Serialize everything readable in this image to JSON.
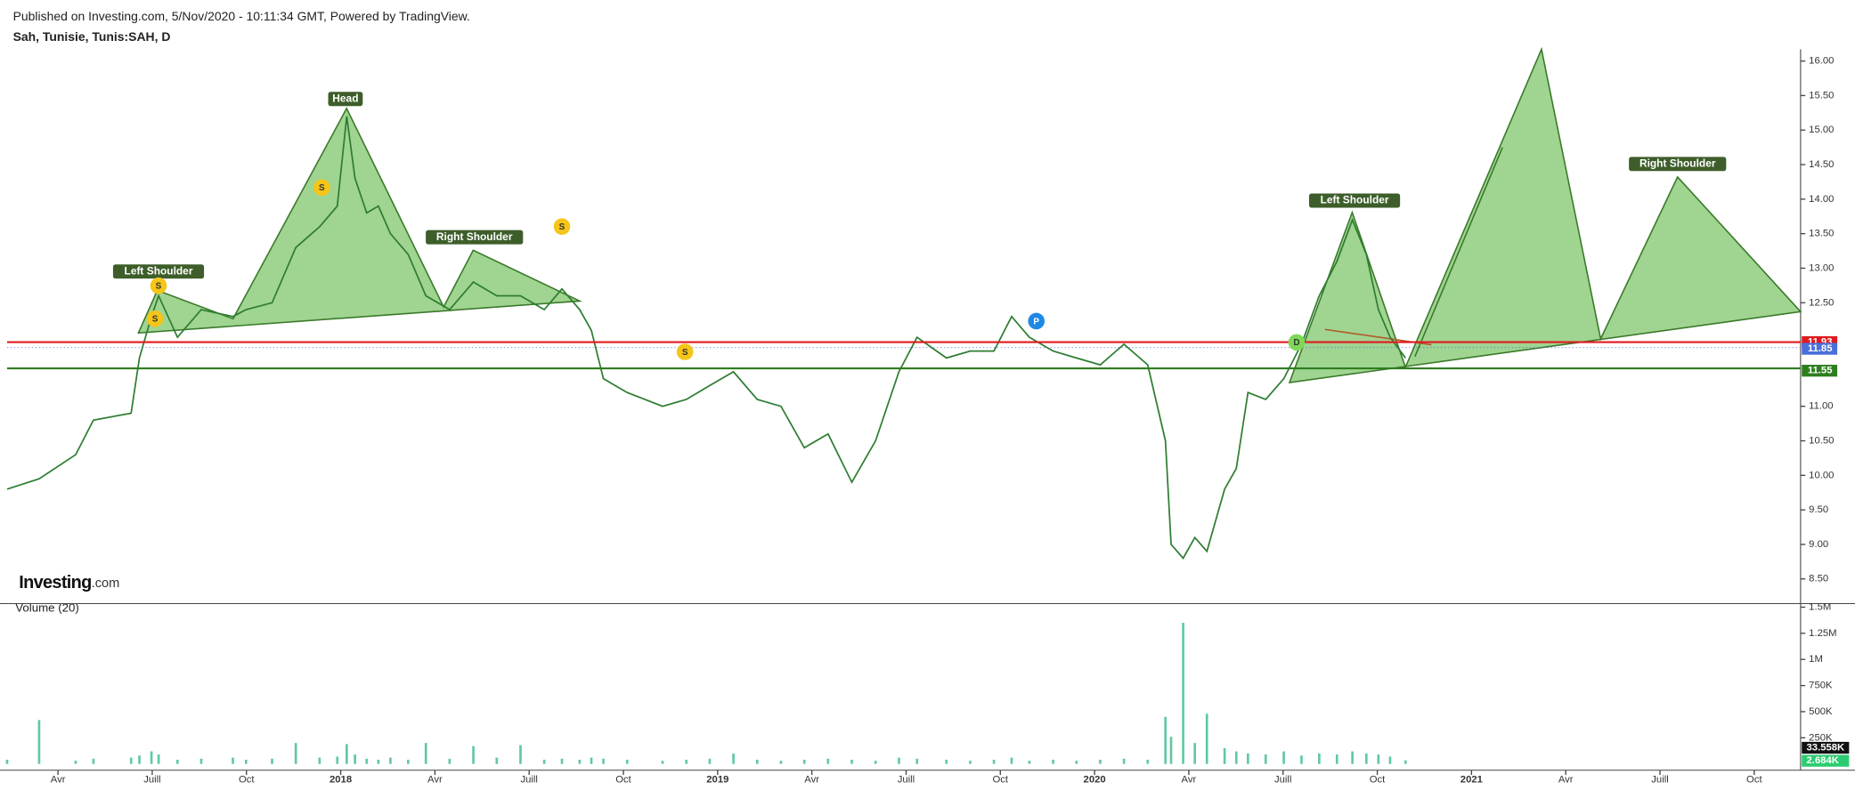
{
  "chart_data": [
    {
      "type": "line",
      "header": "Published on Investing.com, 5/Nov/2020 - 10:11:34 GMT, Powered by TradingView.",
      "title": "Sah, Tunisie, Tunis:SAH, D",
      "logo": "Investing",
      "logo_suffix": ".com",
      "x": [
        2017.115,
        2017.2,
        2017.297,
        2017.344,
        2017.444,
        2017.466,
        2017.498,
        2017.517,
        2017.567,
        2017.63,
        2017.714,
        2017.749,
        2017.818,
        2017.881,
        2017.944,
        2017.991,
        2018.016,
        2018.038,
        2018.069,
        2018.1,
        2018.132,
        2018.179,
        2018.226,
        2018.289,
        2018.352,
        2018.414,
        2018.477,
        2018.54,
        2018.587,
        2018.634,
        2018.665,
        2018.697,
        2018.76,
        2018.854,
        2018.917,
        2018.979,
        2019.042,
        2019.105,
        2019.168,
        2019.23,
        2019.293,
        2019.356,
        2019.419,
        2019.481,
        2019.529,
        2019.607,
        2019.67,
        2019.733,
        2019.78,
        2019.827,
        2019.89,
        2019.952,
        2020.015,
        2020.078,
        2020.141,
        2020.188,
        2020.203,
        2020.235,
        2020.266,
        2020.298,
        2020.345,
        2020.376,
        2020.407,
        2020.454,
        2020.502,
        2020.549,
        2020.596,
        2020.643,
        2020.684,
        2020.721,
        2020.753,
        2020.784,
        2020.825
      ],
      "series": [
        {
          "name": "SAH",
          "color": "#2e7d32",
          "values": [
            9.8,
            9.95,
            10.3,
            10.8,
            10.9,
            11.7,
            12.3,
            12.6,
            12.0,
            12.4,
            12.3,
            12.4,
            12.5,
            13.3,
            13.6,
            13.9,
            15.2,
            14.3,
            13.8,
            13.9,
            13.5,
            13.2,
            12.6,
            12.4,
            12.8,
            12.6,
            12.6,
            12.4,
            12.7,
            12.4,
            12.1,
            11.4,
            11.2,
            11.0,
            11.1,
            11.3,
            11.5,
            11.1,
            11.0,
            10.4,
            10.6,
            9.9,
            10.5,
            11.5,
            12.0,
            11.7,
            11.8,
            11.8,
            12.3,
            12.0,
            11.8,
            11.7,
            11.6,
            11.9,
            11.6,
            10.5,
            9.0,
            8.8,
            9.1,
            8.9,
            9.8,
            10.1,
            11.2,
            11.1,
            11.4,
            11.9,
            12.6,
            13.1,
            13.7,
            13.2,
            12.4,
            12.0,
            11.7
          ]
        }
      ],
      "xlim": [
        2017.115,
        2021.873
      ],
      "xticks": [
        {
          "value": 2017.25,
          "label": "Avr"
        },
        {
          "value": 2017.5,
          "label": "Juill"
        },
        {
          "value": 2017.75,
          "label": "Oct"
        },
        2018,
        {
          "value": 2018.25,
          "label": "Avr"
        },
        {
          "value": 2018.5,
          "label": "Juill"
        },
        {
          "value": 2018.75,
          "label": "Oct"
        },
        2019,
        {
          "value": 2019.25,
          "label": "Avr"
        },
        {
          "value": 2019.5,
          "label": "Juill"
        },
        {
          "value": 2019.75,
          "label": "Oct"
        },
        2020,
        {
          "value": 2020.25,
          "label": "Avr"
        },
        {
          "value": 2020.5,
          "label": "Juill"
        },
        {
          "value": 2020.75,
          "label": "Oct"
        },
        2021,
        {
          "value": 2021.25,
          "label": "Avr"
        },
        {
          "value": 2021.5,
          "label": "Juill"
        },
        {
          "value": 2021.75,
          "label": "Oct"
        }
      ],
      "ylim": [
        8.16,
        16.17
      ],
      "yticks": [
        {
          "value": 16,
          "label": "16.00"
        },
        {
          "value": 15.5,
          "label": "15.50"
        },
        {
          "value": 15,
          "label": "15.00"
        },
        {
          "value": 14.5,
          "label": "14.50"
        },
        {
          "value": 14,
          "label": "14.00"
        },
        {
          "value": 13.5,
          "label": "13.50"
        },
        {
          "value": 13,
          "label": "13.00"
        },
        {
          "value": 12.5,
          "label": "12.50"
        },
        {
          "value": 11,
          "label": "11.00"
        },
        {
          "value": 10.5,
          "label": "10.50"
        },
        {
          "value": 10,
          "label": "10.00"
        },
        {
          "value": 9.5,
          "label": "9.50"
        },
        {
          "value": 9,
          "label": "9.00"
        },
        {
          "value": 8.5,
          "label": "8.50"
        }
      ],
      "price_lines": [
        {
          "value": 11.93,
          "label": "11.93",
          "color": "#e0191f"
        },
        {
          "value": 11.85,
          "label": "11.85",
          "color": "#4a6fd8"
        },
        {
          "value": 11.55,
          "label": "11.55",
          "color": "#2e7d1e"
        }
      ],
      "annotations": [
        {
          "label": "Left Shoulder"
        },
        {
          "label": "Head"
        },
        {
          "label": "Right Shoulder"
        },
        {
          "label": "Left Shoulder"
        },
        {
          "label": "Right Shoulder"
        }
      ],
      "markers": [
        "S",
        "S",
        "S",
        "S",
        "S",
        "P",
        "D"
      ]
    },
    {
      "type": "bar",
      "title": "Volume (20)",
      "series": [
        {
          "name": "Volume",
          "color": "#5fc9a0",
          "values": [
            40000,
            420000,
            30000,
            50000,
            60000,
            80000,
            120000,
            90000,
            40000,
            50000,
            60000,
            40000,
            50000,
            200000,
            60000,
            70000,
            190000,
            90000,
            50000,
            40000,
            60000,
            40000,
            200000,
            50000,
            170000,
            60000,
            180000,
            40000,
            50000,
            40000,
            60000,
            50000,
            40000,
            30000,
            40000,
            50000,
            100000,
            40000,
            30000,
            40000,
            50000,
            40000,
            30000,
            60000,
            50000,
            40000,
            30000,
            40000,
            60000,
            30000,
            40000,
            30000,
            40000,
            50000,
            40000,
            450000,
            260000,
            1350000,
            200000,
            480000,
            150000,
            120000,
            100000,
            90000,
            120000,
            80000,
            100000,
            90000,
            120000,
            100000,
            90000,
            70000,
            33558
          ]
        }
      ],
      "ylim": [
        -38000,
        1557000
      ],
      "yticks": [
        {
          "value": 1500000,
          "label": "1.5M"
        },
        {
          "value": 1250000,
          "label": "1.25M"
        },
        {
          "value": 1000000,
          "label": "1M"
        },
        {
          "value": 750000,
          "label": "750K"
        },
        {
          "value": 500000,
          "label": "500K"
        },
        {
          "value": 250000,
          "label": "250K"
        }
      ],
      "last_labels": [
        {
          "value": 33558,
          "label": "33.558K",
          "color": "#111111"
        },
        {
          "value": 2684,
          "label": "2.684K",
          "color": "#2ecc71"
        }
      ]
    }
  ]
}
